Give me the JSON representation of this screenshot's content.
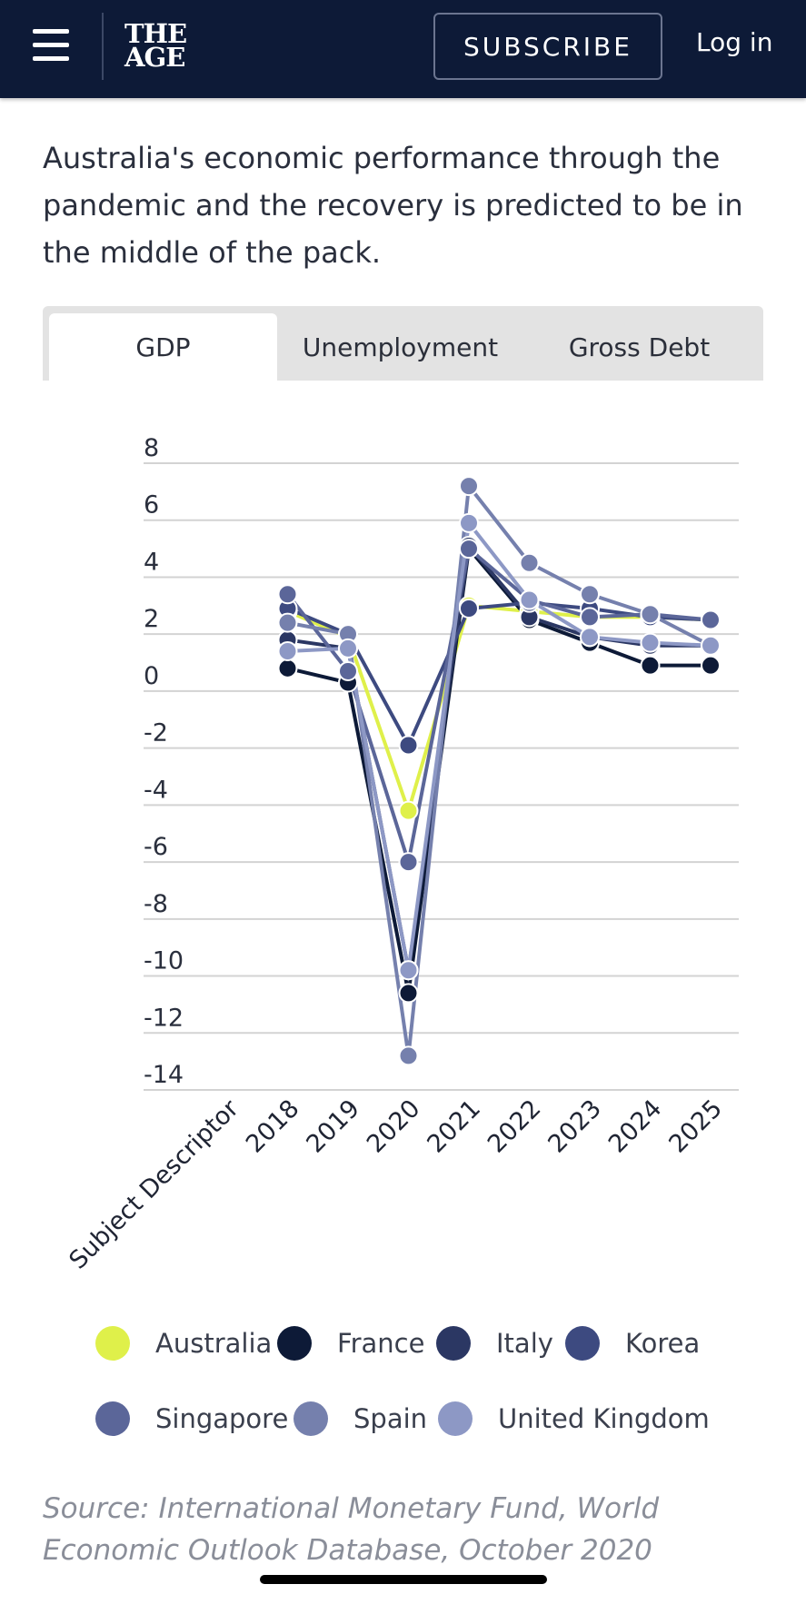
{
  "header": {
    "menu_icon": "hamburger-menu-icon",
    "logo_line1": "THE",
    "logo_line2": "AGE",
    "subscribe_label": "SUBSCRIBE",
    "login_label": "Log in"
  },
  "intro": "Australia's economic performance through the pandemic and the recovery is predicted to be in the middle of the pack.",
  "tabs": [
    {
      "label": "GDP",
      "active": true
    },
    {
      "label": "Unemployment",
      "active": false
    },
    {
      "label": "Gross Debt",
      "active": false
    }
  ],
  "chart_data": {
    "type": "line",
    "x": [
      "Subject Descriptor",
      "2018",
      "2019",
      "2020",
      "2021",
      "2022",
      "2023",
      "2024",
      "2025"
    ],
    "ylim": [
      -14,
      8
    ],
    "yticks": [
      8,
      6,
      4,
      2,
      0,
      -2,
      -4,
      -6,
      -8,
      -10,
      -12,
      -14
    ],
    "grid": true,
    "legend_position": "bottom",
    "series": [
      {
        "name": "Australia",
        "color": "#dff04a",
        "values": [
          null,
          2.8,
          1.9,
          -4.2,
          3.0,
          2.8,
          2.6,
          2.6,
          2.5
        ]
      },
      {
        "name": "France",
        "color": "#0d1a37",
        "values": [
          null,
          0.8,
          0.3,
          -10.6,
          5.0,
          2.5,
          1.7,
          0.9,
          0.9
        ]
      },
      {
        "name": "Italy",
        "color": "#2b3763",
        "values": [
          null,
          1.8,
          1.5,
          -9.8,
          5.1,
          2.6,
          1.9,
          1.6,
          1.6
        ]
      },
      {
        "name": "Korea",
        "color": "#3d4a80",
        "values": [
          null,
          2.9,
          2.0,
          -1.9,
          2.9,
          3.1,
          2.9,
          2.6,
          2.5
        ]
      },
      {
        "name": "Singapore",
        "color": "#5b6699",
        "values": [
          null,
          3.4,
          0.7,
          -6.0,
          5.0,
          3.2,
          2.6,
          2.7,
          2.5
        ]
      },
      {
        "name": "Spain",
        "color": "#7580ad",
        "values": [
          null,
          2.4,
          2.0,
          -12.8,
          7.2,
          4.5,
          3.4,
          2.7,
          1.6
        ]
      },
      {
        "name": "United Kingdom",
        "color": "#8d98c5",
        "values": [
          null,
          1.4,
          1.5,
          -9.8,
          5.9,
          3.2,
          1.9,
          1.7,
          1.6
        ]
      }
    ]
  },
  "source": "Source: International Monetary Fund, World Economic Outlook Database, October 2020"
}
